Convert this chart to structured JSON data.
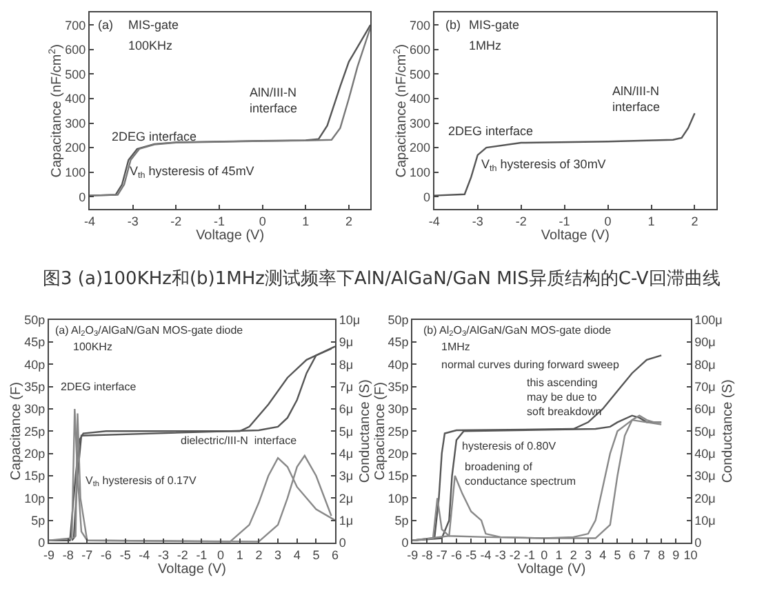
{
  "chart_data": [
    {
      "type": "line",
      "xlabel": "Voltage (V)",
      "ylabel": "Capacitance (nF/cm$^{2}$)",
      "xlim": [
        -4,
        2.5
      ],
      "ylim": [
        -50,
        750
      ],
      "xticks": [
        -4,
        -3,
        -2,
        -1,
        0,
        1,
        2
      ],
      "yticks": [
        0,
        100,
        200,
        300,
        400,
        500,
        600,
        700
      ],
      "grid": false,
      "legend": false,
      "annotations": [
        "(a)",
        "MIS-gate",
        "100KHz",
        "2DEG interface",
        "V$_{th}$ hysteresis of 45mV",
        "AlN/III-N\ninterface",
        "图3 (a)100KHz和(b)1MHz测试频率下AlN/AlGaN/GaN MIS异质结构的C-V回滞曲线"
      ],
      "series": [
        {
          "color": "#555555",
          "x": [
            -4,
            -3.4,
            -3.25,
            -3.1,
            -2.9,
            -2.5,
            -2,
            0,
            1,
            1.3,
            1.5,
            1.8,
            2.0,
            2.3,
            2.5
          ],
          "values": [
            5,
            8,
            50,
            150,
            195,
            215,
            222,
            228,
            230,
            235,
            290,
            450,
            550,
            640,
            700
          ]
        },
        {
          "color": "#777777",
          "x": [
            -4,
            -3.35,
            -3.2,
            -3.05,
            -2.85,
            -2.5,
            -2,
            0,
            1,
            1.6,
            1.8,
            2.0,
            2.2,
            2.5
          ],
          "values": [
            5,
            8,
            50,
            150,
            195,
            213,
            221,
            227,
            229,
            232,
            280,
            400,
            530,
            690
          ]
        }
      ]
    },
    {
      "type": "line",
      "xlabel": "Voltage (V)",
      "ylabel": "Capacitance (nF/cm$^{2}$)",
      "xlim": [
        -4,
        2.5
      ],
      "ylim": [
        -50,
        750
      ],
      "xticks": [
        -4,
        -3,
        -2,
        -1,
        0,
        1,
        2
      ],
      "yticks": [
        0,
        100,
        200,
        300,
        400,
        500,
        600,
        700
      ],
      "grid": false,
      "legend": false,
      "annotations": [
        "(b)",
        "MIS-gate",
        "1MHz",
        "2DEG interface",
        "V$_{th}$ hysteresis of 30mV",
        "AlN/III-N\ninterface"
      ],
      "series": [
        {
          "color": "#555555",
          "x": [
            -4,
            -3.3,
            -3.15,
            -3.0,
            -2.8,
            -2,
            0,
            1.5,
            1.7,
            1.85,
            2.0
          ],
          "values": [
            5,
            10,
            80,
            170,
            200,
            220,
            225,
            232,
            240,
            280,
            340
          ]
        }
      ]
    },
    {
      "type": "line",
      "xlabel": "Voltage (V)",
      "ylabel": "Capacitance (F)",
      "y2label": "Conductance (S)",
      "xlim": [
        -9,
        6
      ],
      "ylim": [
        0,
        50
      ],
      "y2lim": [
        0,
        10
      ],
      "xticks": [
        -9,
        -8,
        -7,
        -6,
        -5,
        -4,
        -3,
        -2,
        -1,
        0,
        1,
        2,
        3,
        4,
        5,
        6
      ],
      "yticks": [
        0,
        {
          "value": 5,
          "label": "5p"
        },
        {
          "value": 10,
          "label": "10p"
        },
        {
          "value": 15,
          "label": "15p"
        },
        {
          "value": 20,
          "label": "20p"
        },
        {
          "value": 25,
          "label": "25p"
        },
        {
          "value": 30,
          "label": "30p"
        },
        {
          "value": 35,
          "label": "35p"
        },
        {
          "value": 40,
          "label": "40p"
        },
        {
          "value": 45,
          "label": "45p"
        },
        {
          "value": 50,
          "label": "50p"
        }
      ],
      "y2ticks": [
        0,
        {
          "value": 1,
          "label": "1μ"
        },
        {
          "value": 2,
          "label": "2μ"
        },
        {
          "value": 3,
          "label": "3μ"
        },
        {
          "value": 4,
          "label": "4μ"
        },
        {
          "value": 5,
          "label": "5μ"
        },
        {
          "value": 6,
          "label": "6μ"
        },
        {
          "value": 7,
          "label": "7μ"
        },
        {
          "value": 8,
          "label": "8μ"
        },
        {
          "value": 9,
          "label": "9μ"
        },
        {
          "value": 10,
          "label": "10μ"
        }
      ],
      "grid": false,
      "legend": false,
      "annotations": [
        "(a) Al$_{2}$O$_{3}$/AlGaN/GaN MOS-gate diode",
        "100KHz",
        "2DEG interface",
        "dielectric/III-N  interface",
        "V$_{th}$ hysteresis of 0.17V"
      ],
      "series": [
        {
          "color": "#555555",
          "x": [
            -9,
            -7.9,
            -7.6,
            -7.4,
            -7.2,
            -6,
            1,
            1.5,
            2.5,
            3.5,
            4.5,
            5.5,
            6
          ],
          "values": [
            0.5,
            0.5,
            15,
            23,
            24.5,
            25,
            25,
            26,
            31,
            37,
            41,
            43,
            44
          ]
        },
        {
          "color": "#555555",
          "x": [
            5.8,
            5,
            4.5,
            4,
            3.5,
            3,
            2,
            -7.3,
            -7.5,
            -7.7,
            -7.8
          ],
          "values": [
            43.5,
            42,
            38,
            32,
            28,
            26,
            25.2,
            24,
            15,
            1,
            0.5
          ]
        },
        {
          "color": "#888888",
          "axis": "y2",
          "x": [
            -9,
            -7.8,
            -7.65,
            -7.5,
            -7.3,
            -7,
            0.5,
            1.5,
            2,
            2.5,
            3,
            3.5,
            4,
            5,
            6
          ],
          "values": [
            0.1,
            0.2,
            6,
            3,
            0.5,
            0.1,
            0.05,
            0.8,
            1.8,
            3,
            3.8,
            3.4,
            2.5,
            1.5,
            1
          ]
        },
        {
          "color": "#888888",
          "axis": "y2",
          "x": [
            -7.7,
            -7.6,
            -7.5,
            -7.35,
            -7,
            2,
            3,
            3.5,
            4,
            4.4,
            5,
            5.8
          ],
          "values": [
            0.2,
            0.3,
            5.8,
            2,
            0.1,
            0.05,
            0.8,
            2,
            3.4,
            3.9,
            3,
            1.2
          ]
        }
      ]
    },
    {
      "type": "line",
      "xlabel": "Voltage (V)",
      "ylabel": "Capacitance (F)",
      "y2label": "Conductance (S)",
      "xlim": [
        -9,
        10
      ],
      "ylim": [
        0,
        50
      ],
      "y2lim": [
        0,
        100
      ],
      "xticks": [
        -9,
        -8,
        -7,
        -6,
        -5,
        -4,
        -3,
        -2,
        -1,
        0,
        1,
        2,
        3,
        4,
        5,
        6,
        7,
        8,
        9,
        10
      ],
      "yticks": [
        0,
        {
          "value": 5,
          "label": "5p"
        },
        {
          "value": 10,
          "label": "10p"
        },
        {
          "value": 15,
          "label": "15p"
        },
        {
          "value": 20,
          "label": "20p"
        },
        {
          "value": 25,
          "label": "25p"
        },
        {
          "value": 30,
          "label": "30p"
        },
        {
          "value": 35,
          "label": "35p"
        },
        {
          "value": 40,
          "label": "40p"
        },
        {
          "value": 45,
          "label": "45p"
        },
        {
          "value": 50,
          "label": "50p"
        }
      ],
      "y2ticks": [
        0,
        {
          "value": 10,
          "label": "10μ"
        },
        {
          "value": 20,
          "label": "20μ"
        },
        {
          "value": 30,
          "label": "30μ"
        },
        {
          "value": 40,
          "label": "40μ"
        },
        {
          "value": 50,
          "label": "50μ"
        },
        {
          "value": 60,
          "label": "60μ"
        },
        {
          "value": 70,
          "label": "70μ"
        },
        {
          "value": 80,
          "label": "80μ"
        },
        {
          "value": 90,
          "label": "90μ"
        },
        {
          "value": 100,
          "label": "100μ"
        }
      ],
      "grid": false,
      "legend": false,
      "annotations": [
        "(b) Al$_{2}$O$_{3}$/AlGaN/GaN MOS-gate diode",
        "1MHz",
        "normal curves during forward sweep",
        "hysteresis of 0.80V",
        "broadening of\nconductance spectrum",
        "this ascending\nmay be due to\nsoft breakdown"
      ],
      "series": [
        {
          "color": "#555555",
          "x": [
            -9,
            -7.5,
            -7.2,
            -7,
            -6.8,
            -6,
            2,
            3,
            4,
            5,
            6,
            7,
            8
          ],
          "values": [
            0.5,
            1,
            10,
            20,
            24.5,
            25.2,
            25.5,
            27,
            30,
            34,
            38,
            41,
            42
          ]
        },
        {
          "color": "#555555",
          "x": [
            8,
            7,
            6.5,
            6,
            5,
            4.5,
            3.5,
            -5.5,
            -6,
            -6.3,
            -6.5,
            -7,
            -9
          ],
          "values": [
            27,
            27,
            28,
            28.5,
            27,
            26,
            25.5,
            25,
            23,
            15,
            5,
            1,
            0.5
          ]
        },
        {
          "color": "#888888",
          "axis": "y2",
          "x": [
            -9,
            -7.6,
            -7.3,
            -7.0,
            -6.5,
            -4,
            0,
            2,
            3,
            3.5,
            4,
            4.5,
            5,
            6,
            7,
            8
          ],
          "values": [
            1,
            2,
            20,
            6,
            3,
            2.5,
            2,
            2.5,
            4,
            10,
            25,
            40,
            50,
            55,
            54,
            53
          ]
        },
        {
          "color": "#888888",
          "axis": "y2",
          "x": [
            -9,
            -6.5,
            -6.1,
            -5.6,
            -5,
            -4.3,
            -4,
            -3,
            0,
            3.5,
            4.5,
            5,
            5.5,
            6,
            6.5,
            7,
            7.5,
            8
          ],
          "values": [
            1,
            3,
            30,
            22,
            14,
            10,
            4,
            2.5,
            2,
            2,
            8,
            30,
            48,
            55,
            57,
            55,
            54,
            54
          ]
        }
      ]
    }
  ]
}
